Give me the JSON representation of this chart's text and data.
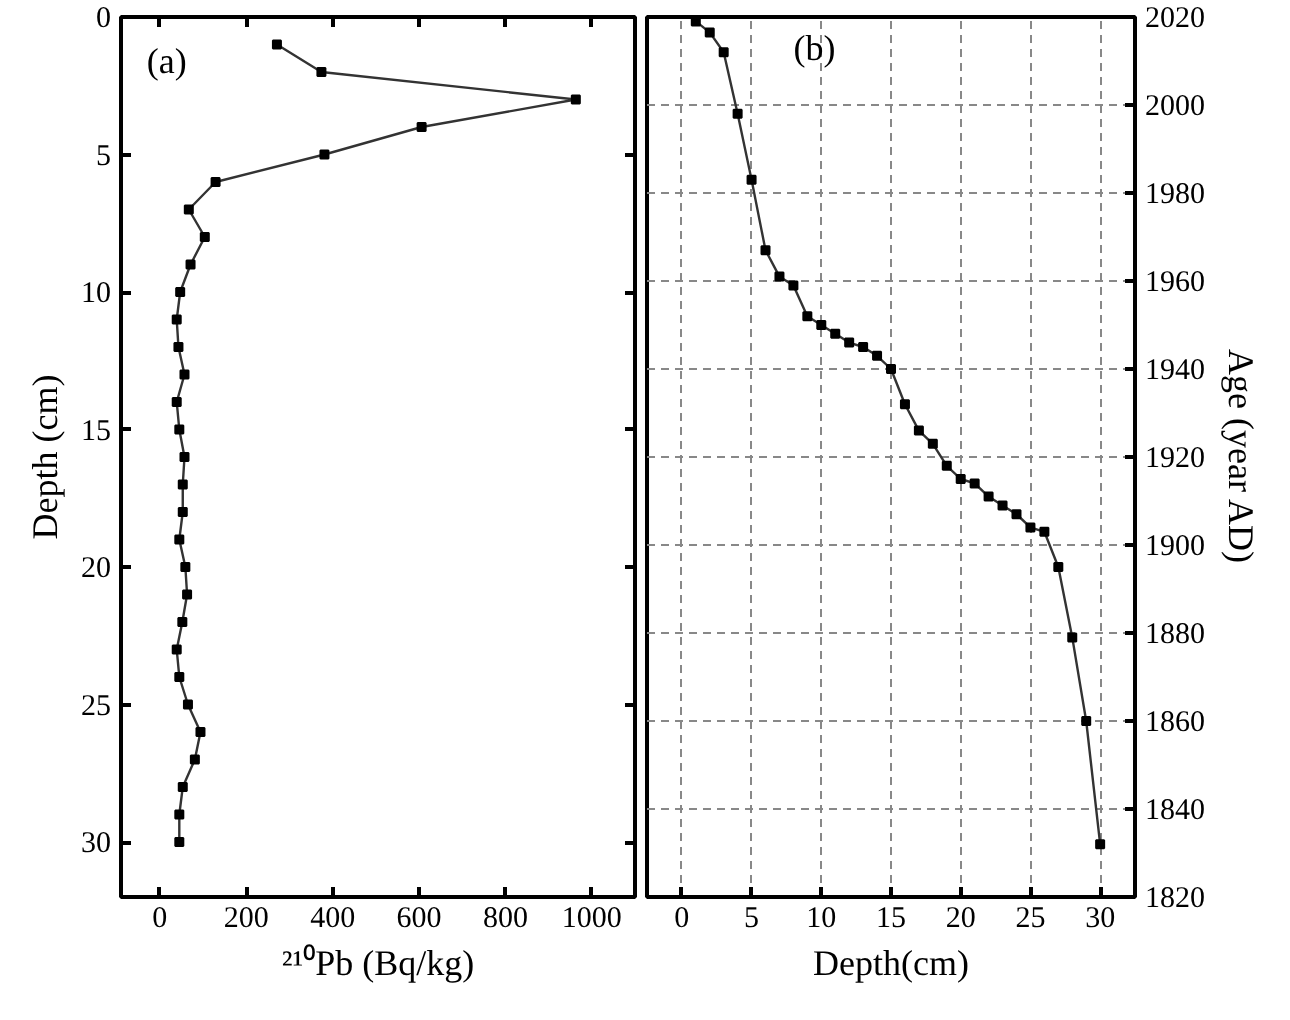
{
  "chart_data": [
    {
      "type": "line",
      "title": "(a)",
      "xlabel": "²¹⁰Pb (Bq/kg)",
      "ylabel": "Depth (cm)",
      "marker": "square",
      "line_style": "solid",
      "grid": false,
      "series": [
        {
          "color": "#333333",
          "x": [
            271,
            374,
            963,
            606,
            381,
            129,
            67,
            104,
            71,
            47,
            39,
            43,
            57,
            39,
            45,
            57,
            53,
            53,
            45,
            59,
            63,
            52,
            39,
            45,
            65,
            94,
            81,
            53,
            45,
            45
          ],
          "values": [
            1,
            2,
            3,
            4,
            5,
            6,
            7,
            8,
            9,
            10,
            11,
            12,
            13,
            14,
            15,
            16,
            17,
            18,
            19,
            20,
            21,
            22,
            23,
            24,
            25,
            26,
            27,
            28,
            29,
            30
          ]
        }
      ],
      "xlim": [
        -90,
        1100
      ],
      "xticks": [
        0,
        200,
        400,
        600,
        800,
        1000
      ],
      "ylim": [
        32,
        0
      ],
      "yticks": [
        0,
        5,
        10,
        15,
        20,
        25,
        30
      ]
    },
    {
      "type": "line",
      "title": "(b)",
      "xlabel": "Depth(cm)",
      "ylabel": "Age (year AD)",
      "marker": "square",
      "line_style": "solid",
      "grid": true,
      "series": [
        {
          "color": "#333333",
          "x": [
            1,
            2,
            3,
            4,
            5,
            6,
            7,
            8,
            9,
            10,
            11,
            12,
            13,
            14,
            15,
            16,
            17,
            18,
            19,
            20,
            21,
            22,
            23,
            24,
            25,
            26,
            27,
            28,
            29,
            30
          ],
          "values": [
            2019,
            2016.5,
            2012,
            1998,
            1983,
            1967,
            1961,
            1959,
            1952,
            1950,
            1948,
            1946,
            1945,
            1943,
            1940,
            1932,
            1926,
            1923,
            1918,
            1915,
            1914,
            1911,
            1909,
            1907,
            1904,
            1903,
            1895,
            1879,
            1860,
            1832
          ]
        }
      ],
      "xlim": [
        -2.5,
        32.5
      ],
      "xticks": [
        0,
        5,
        10,
        15,
        20,
        25,
        30
      ],
      "ylim": [
        1820,
        2020
      ],
      "yticks": [
        1820,
        1840,
        1860,
        1880,
        1900,
        1920,
        1940,
        1960,
        1980,
        2000,
        2020
      ]
    }
  ]
}
